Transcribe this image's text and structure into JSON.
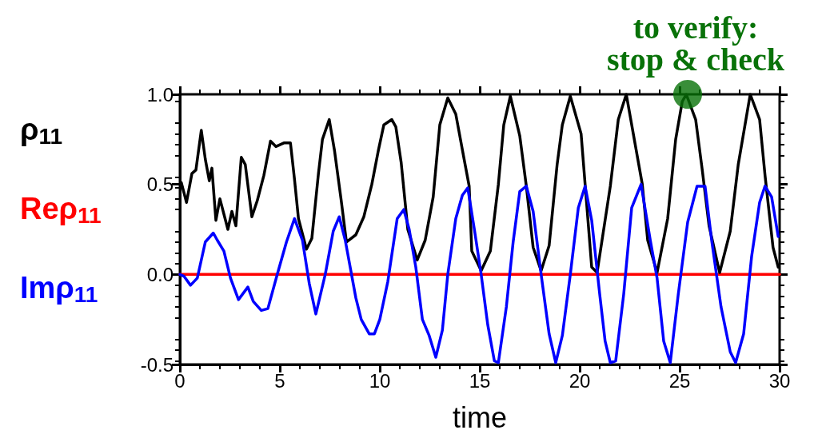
{
  "chart_data": {
    "type": "line",
    "xlabel": "time",
    "xlim": [
      0,
      30
    ],
    "xticks": [
      0,
      5,
      10,
      15,
      20,
      25,
      30
    ],
    "ylim": [
      -0.5,
      1.0
    ],
    "yticks": [
      {
        "value": -0.5,
        "label": "-0.5"
      },
      {
        "value": 0,
        "label": "0.0"
      },
      {
        "value": 0.5,
        "label": "0.5"
      },
      {
        "value": 1.0,
        "label": "1.0"
      }
    ],
    "grid": false,
    "legend": "left",
    "marker": "none",
    "line_style": "solid",
    "annotations": [
      {
        "text": "to verify:\nstop & check",
        "x": 25.4,
        "y": 1.0
      }
    ],
    "series": [
      {
        "name": "ρ$_{11}$",
        "color": "#000000",
        "x": [
          0.07,
          0.33,
          0.6,
          0.8,
          1.07,
          1.27,
          1.47,
          1.6,
          1.8,
          2.0,
          2.4,
          2.6,
          2.8,
          3.07,
          3.27,
          3.6,
          3.87,
          4.2,
          4.53,
          4.8,
          5.2,
          5.53,
          5.73,
          5.93,
          6.33,
          6.6,
          6.93,
          7.13,
          7.47,
          7.73,
          8.07,
          8.33,
          8.8,
          9.2,
          9.6,
          9.93,
          10.2,
          10.6,
          10.8,
          11.07,
          11.4,
          11.87,
          12.27,
          12.67,
          13.0,
          13.4,
          13.8,
          14.2,
          14.47,
          14.6,
          15.07,
          15.53,
          15.93,
          16.2,
          16.53,
          17.0,
          17.33,
          17.67,
          18.07,
          18.47,
          18.87,
          19.13,
          19.53,
          20.07,
          20.27,
          20.6,
          20.87,
          21.53,
          21.93,
          22.33,
          22.73,
          23.13,
          23.4,
          23.87,
          24.4,
          24.8,
          25.13,
          25.33,
          25.8,
          26.13,
          26.47,
          27.0,
          27.53,
          27.93,
          28.53,
          29.0,
          29.27,
          29.67,
          29.93
        ],
        "values": [
          0.51,
          0.4,
          0.56,
          0.58,
          0.8,
          0.64,
          0.52,
          0.59,
          0.3,
          0.42,
          0.25,
          0.35,
          0.27,
          0.65,
          0.61,
          0.32,
          0.41,
          0.55,
          0.74,
          0.71,
          0.73,
          0.73,
          0.53,
          0.31,
          0.14,
          0.2,
          0.56,
          0.75,
          0.86,
          0.69,
          0.41,
          0.18,
          0.22,
          0.32,
          0.5,
          0.69,
          0.83,
          0.86,
          0.82,
          0.62,
          0.25,
          0.08,
          0.19,
          0.43,
          0.83,
          0.98,
          0.89,
          0.65,
          0.49,
          0.13,
          0.02,
          0.13,
          0.5,
          0.83,
          0.99,
          0.77,
          0.49,
          0.15,
          0.02,
          0.16,
          0.61,
          0.83,
          0.99,
          0.78,
          0.5,
          0.04,
          0.01,
          0.49,
          0.86,
          1.0,
          0.75,
          0.5,
          0.19,
          0.01,
          0.31,
          0.75,
          0.96,
          1.0,
          0.86,
          0.58,
          0.27,
          0.01,
          0.24,
          0.61,
          1.0,
          0.86,
          0.55,
          0.15,
          0.04
        ]
      },
      {
        "name": "Reρ$_{11}$",
        "color": "#ff0000",
        "x": [
          0,
          30
        ],
        "values": [
          0,
          0
        ]
      },
      {
        "name": "Imρ$_{11}$",
        "color": "#0000ff",
        "x": [
          0,
          0.2,
          0.53,
          0.87,
          1.27,
          1.67,
          1.87,
          2.2,
          2.53,
          2.93,
          3.4,
          3.67,
          4.07,
          4.4,
          4.87,
          5.33,
          5.73,
          6.13,
          6.47,
          6.8,
          7.27,
          7.67,
          7.97,
          8.27,
          8.8,
          9.07,
          9.47,
          9.73,
          10.0,
          10.4,
          10.87,
          11.2,
          11.47,
          11.8,
          12.13,
          12.47,
          12.8,
          13.13,
          13.4,
          13.8,
          14.13,
          14.4,
          14.73,
          15.07,
          15.4,
          15.73,
          15.93,
          16.33,
          16.67,
          17.0,
          17.33,
          17.67,
          18.07,
          18.47,
          18.8,
          19.13,
          19.53,
          19.93,
          20.27,
          20.6,
          21.0,
          21.27,
          21.53,
          21.8,
          22.2,
          22.6,
          23.07,
          23.53,
          23.87,
          24.2,
          24.53,
          24.93,
          25.4,
          25.87,
          26.27,
          26.6,
          27.07,
          27.53,
          27.8,
          28.2,
          28.6,
          29.0,
          29.27,
          29.6,
          29.93
        ],
        "values": [
          0,
          -0.01,
          -0.06,
          -0.02,
          0.18,
          0.23,
          0.19,
          0.13,
          -0.02,
          -0.14,
          -0.07,
          -0.15,
          -0.2,
          -0.19,
          0,
          0.18,
          0.31,
          0.19,
          -0.05,
          -0.22,
          0,
          0.24,
          0.32,
          0.19,
          -0.13,
          -0.25,
          -0.33,
          -0.33,
          -0.25,
          -0.04,
          0.31,
          0.36,
          0.25,
          0.04,
          -0.25,
          -0.34,
          -0.46,
          -0.31,
          0,
          0.31,
          0.44,
          0.48,
          0.25,
          0,
          -0.28,
          -0.48,
          -0.49,
          -0.18,
          0.18,
          0.46,
          0.49,
          0.35,
          0,
          -0.33,
          -0.49,
          -0.34,
          0,
          0.37,
          0.49,
          0.3,
          -0.11,
          -0.37,
          -0.49,
          -0.48,
          -0.11,
          0.37,
          0.5,
          0.19,
          -0.02,
          -0.37,
          -0.49,
          -0.11,
          0.29,
          0.49,
          0.49,
          0.19,
          -0.18,
          -0.43,
          -0.49,
          -0.33,
          0.1,
          0.4,
          0.49,
          0.43,
          0.21
        ]
      },
      {
        "type": "scatter",
        "color": "#087208",
        "x": [
          25.4
        ],
        "values": [
          1.0
        ],
        "marker": "circle"
      }
    ]
  }
}
